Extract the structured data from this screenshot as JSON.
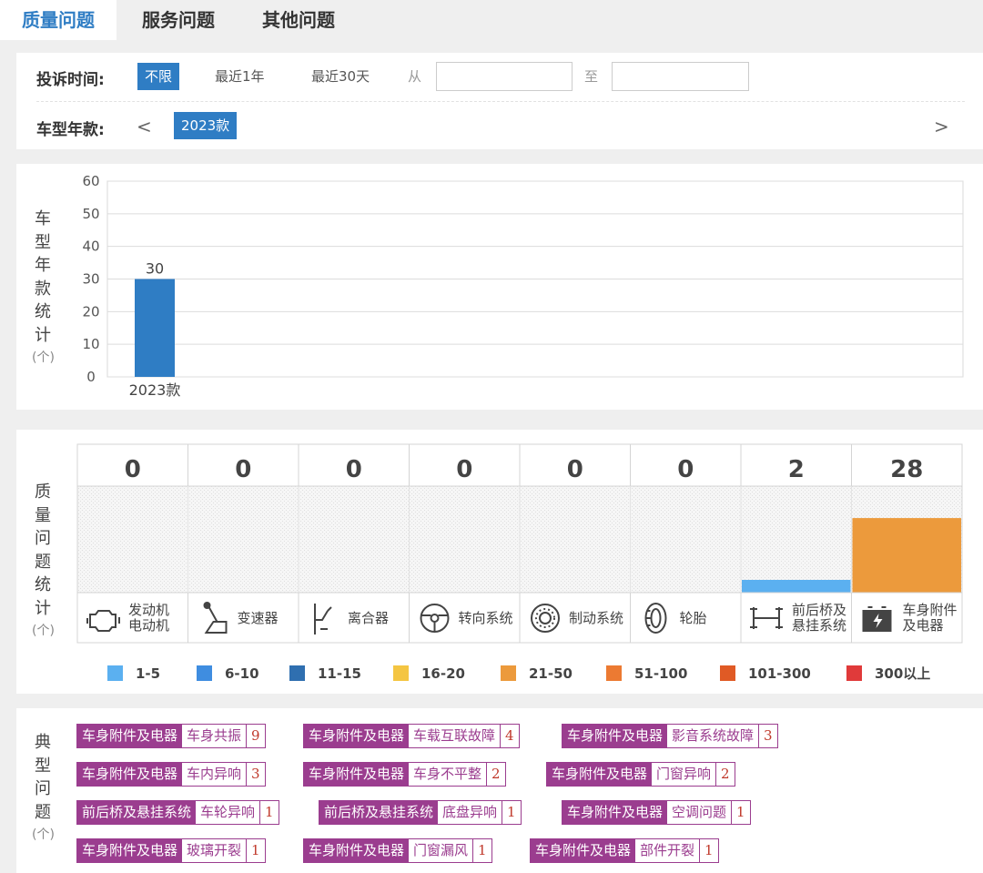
{
  "tabs": [
    {
      "label": "质量问题",
      "active": true
    },
    {
      "label": "服务问题",
      "active": false
    },
    {
      "label": "其他问题",
      "active": false
    }
  ],
  "filter": {
    "time_label": "投诉时间:",
    "time_options": [
      "不限",
      "最近1年",
      "最近30天"
    ],
    "time_selected": "不限",
    "from_label": "从",
    "to_label": "至",
    "from_value": "",
    "to_value": "",
    "model_label": "车型年款:",
    "prev_arrow": "<",
    "next_arrow": ">",
    "model_year_selected": "2023款"
  },
  "year_chart": {
    "ylabel_chars": [
      "车",
      "型",
      "年",
      "款",
      "统",
      "计"
    ],
    "unit": "(个)"
  },
  "quality_chart": {
    "ylabel_chars": [
      "质",
      "量",
      "问",
      "题",
      "统",
      "计"
    ],
    "unit": "(个)",
    "icons": [
      "engine-icon",
      "gearshift-icon",
      "clutch-icon",
      "steering-wheel-icon",
      "brake-disc-icon",
      "tire-icon",
      "axle-suspension-icon",
      "battery-icon"
    ]
  },
  "chart_data": [
    {
      "type": "bar",
      "categories": [
        "2023款"
      ],
      "values": [
        30
      ],
      "ylim": [
        0,
        60
      ],
      "yticks": [
        0,
        10,
        20,
        30,
        40,
        50,
        60
      ],
      "ylabel": "车型年款统计(个)",
      "data_labels": true,
      "bar_color": "#2f7dc4",
      "grid": true
    },
    {
      "type": "bar",
      "categories": [
        [
          "发动机",
          "电动机"
        ],
        [
          "变速器"
        ],
        [
          "离合器"
        ],
        [
          "转向系统"
        ],
        [
          "制动系统"
        ],
        [
          "轮胎"
        ],
        [
          "前后桥及",
          "悬挂系统"
        ],
        [
          "车身附件",
          "及电器"
        ]
      ],
      "values": [
        0,
        0,
        0,
        0,
        0,
        0,
        2,
        28
      ],
      "ylabel": "质量问题统计(个)",
      "color_scale": [
        {
          "range": "1-5",
          "color": "#5bb0f0"
        },
        {
          "range": "6-10",
          "color": "#3f8de0"
        },
        {
          "range": "11-15",
          "color": "#2f6fb0"
        },
        {
          "range": "16-20",
          "color": "#f4c542"
        },
        {
          "range": "21-50",
          "color": "#ec9a3c"
        },
        {
          "range": "51-100",
          "color": "#ec7a32"
        },
        {
          "range": "101-300",
          "color": "#e05a25"
        },
        {
          "range": "300以上",
          "color": "#e03a3a"
        }
      ]
    }
  ],
  "typical": {
    "ylabel_chars": [
      "典",
      "型",
      "问",
      "题"
    ],
    "unit": "(个)",
    "rows": [
      [
        {
          "category": "车身附件及电器",
          "issue": "车身共振",
          "count": "9"
        },
        {
          "category": "车身附件及电器",
          "issue": "车载互联故障",
          "count": "4"
        },
        {
          "category": "车身附件及电器",
          "issue": "影音系统故障",
          "count": "3"
        }
      ],
      [
        {
          "category": "车身附件及电器",
          "issue": "车内异响",
          "count": "3"
        },
        {
          "category": "车身附件及电器",
          "issue": "车身不平整",
          "count": "2"
        },
        {
          "category": "车身附件及电器",
          "issue": "门窗异响",
          "count": "2"
        }
      ],
      [
        {
          "category": "前后桥及悬挂系统",
          "issue": "车轮异响",
          "count": "1"
        },
        {
          "category": "前后桥及悬挂系统",
          "issue": "底盘异响",
          "count": "1"
        },
        {
          "category": "车身附件及电器",
          "issue": "空调问题",
          "count": "1"
        }
      ],
      [
        {
          "category": "车身附件及电器",
          "issue": "玻璃开裂",
          "count": "1"
        },
        {
          "category": "车身附件及电器",
          "issue": "门窗漏风",
          "count": "1"
        },
        {
          "category": "车身附件及电器",
          "issue": "部件开裂",
          "count": "1"
        }
      ]
    ]
  }
}
